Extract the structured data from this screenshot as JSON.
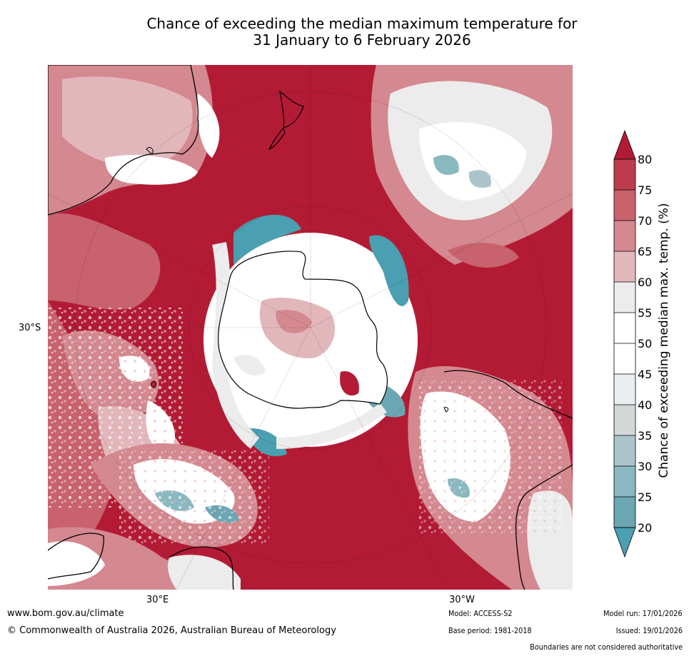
{
  "title": {
    "line1": "Chance of exceeding the median maximum temperature for",
    "line2": "31 January to 6 February 2026"
  },
  "map": {
    "projection": "south-polar-stereographic",
    "latitude_label": "30°S",
    "longitude_labels": [
      "30°E",
      "30°W"
    ],
    "colors": {
      "ocean_high": "#b31b35",
      "land_outline": "#000000"
    },
    "features": [
      "antarctica",
      "australia",
      "new-zealand",
      "south-america",
      "southern-africa",
      "madagascar"
    ]
  },
  "legend": {
    "title": "Chance of exceeding median max. temp. (%)",
    "ticks": [
      "80",
      "75",
      "70",
      "65",
      "60",
      "55",
      "50",
      "45",
      "40",
      "35",
      "30",
      "25",
      "20"
    ],
    "colors": {
      "above_80": "#b31b35",
      "75_80": "#bd3c4c",
      "70_75": "#c8626d",
      "65_70": "#d4888f",
      "60_65": "#e2b7bb",
      "55_60": "#ececec",
      "50_55": "#ffffff",
      "45_50": "#ffffff",
      "40_45": "#e9eef0",
      "35_40": "#d2d7d8",
      "30_35": "#abc5ca",
      "25_30": "#89b8c1",
      "20_25": "#6aa7b3",
      "below_20": "#4a9fb0"
    }
  },
  "footer": {
    "website": "www.bom.gov.au/climate",
    "copyright": "© Commonwealth of Australia 2026, Australian Bureau of Meteorology",
    "model": "Model: ACCESS-S2",
    "base_period": "Base period: 1981-2018",
    "model_run": "Model run: 17/01/2026",
    "issued": "Issued: 19/01/2026",
    "boundaries": "Boundaries are not considered authoritative"
  }
}
